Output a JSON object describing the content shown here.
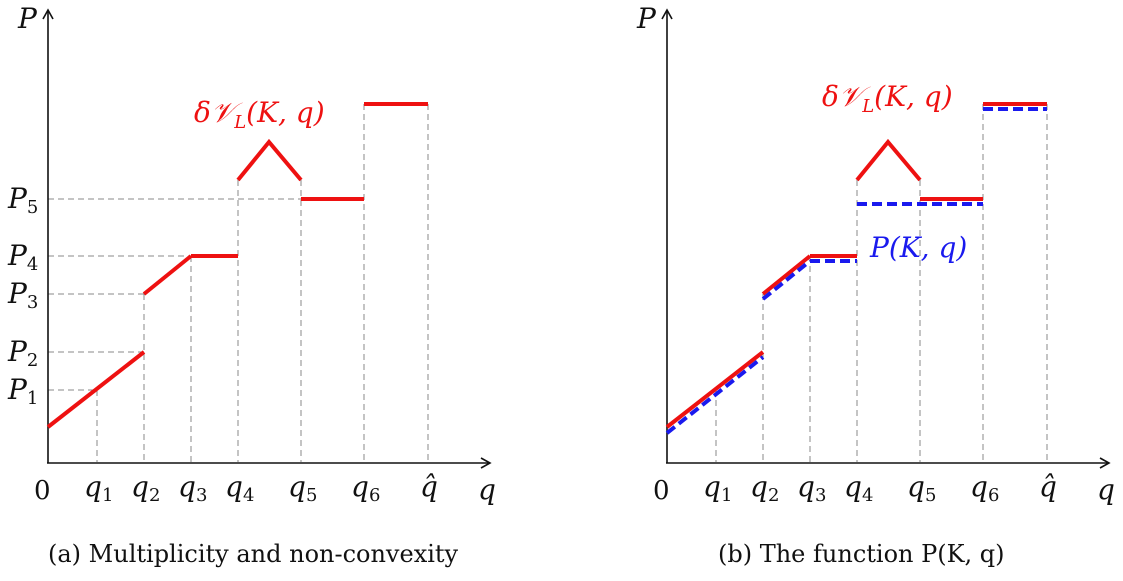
{
  "panel_a": {
    "y_axis_label": "P",
    "x_axis_label": "q",
    "origin_label": "0",
    "x_ticks": [
      "q",
      "q",
      "q",
      "q",
      "q",
      "q",
      "q̂"
    ],
    "x_tick_subs": [
      "1",
      "2",
      "3",
      "4",
      "5",
      "6",
      ""
    ],
    "y_ticks": [
      "P",
      "P",
      "P",
      "P",
      "P"
    ],
    "y_tick_subs": [
      "1",
      "2",
      "3",
      "4",
      "5"
    ],
    "curve_label_main": "δ𝒱",
    "curve_label_sub": "L",
    "curve_label_args": "(K, q)",
    "caption": "(a) Multiplicity and non-convexity"
  },
  "panel_b": {
    "y_axis_label": "P",
    "x_axis_label": "q",
    "origin_label": "0",
    "x_ticks": [
      "q",
      "q",
      "q",
      "q",
      "q",
      "q",
      "q̂"
    ],
    "x_tick_subs": [
      "1",
      "2",
      "3",
      "4",
      "5",
      "6",
      ""
    ],
    "curve_label_main": "δ𝒱",
    "curve_label_sub": "L",
    "curve_label_args": "(K, q)",
    "blue_label": "P(K, q)",
    "caption": "(b) The function P(K, q)"
  },
  "colors": {
    "red_curve": "#ee1111",
    "blue_curve": "#1a1aee"
  }
}
